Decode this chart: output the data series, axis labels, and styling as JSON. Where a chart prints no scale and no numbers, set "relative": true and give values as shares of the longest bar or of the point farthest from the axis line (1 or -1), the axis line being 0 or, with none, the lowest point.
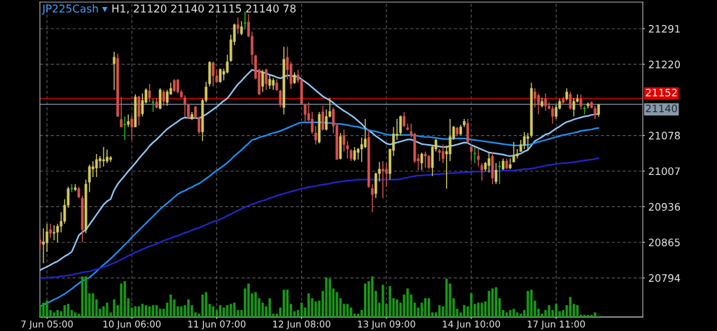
{
  "chart_data": [
    {
      "type": "candlestick",
      "title": "JP225Cash ▾",
      "subtitle": "H1, 21120 21140 21115 21140 78",
      "categories": [
        null,
        null,
        "7 Jun 05:00",
        null,
        null,
        null,
        null,
        null,
        null,
        null,
        null,
        null,
        null,
        null,
        null,
        null,
        null,
        null,
        null,
        null,
        null,
        null,
        null,
        null,
        null,
        null,
        "10 Jun 06:00",
        null,
        null,
        null,
        null,
        null,
        null,
        null,
        null,
        null,
        null,
        null,
        null,
        null,
        null,
        null,
        null,
        null,
        null,
        null,
        null,
        null,
        null,
        null,
        "11 Jun 07:00",
        null,
        null,
        null,
        null,
        null,
        null,
        null,
        null,
        null,
        null,
        null,
        null,
        null,
        null,
        null,
        null,
        null,
        null,
        null,
        null,
        null,
        null,
        null,
        "12 Jun 08:00",
        null,
        null,
        null,
        null,
        null,
        null,
        null,
        null,
        null,
        null,
        null,
        null,
        null,
        null,
        null,
        null,
        null,
        null,
        null,
        null,
        null,
        null,
        null,
        "13 Jun 09:00",
        null,
        null,
        null,
        null,
        null,
        null,
        null,
        null,
        null,
        null,
        null,
        null,
        null,
        null,
        null,
        null,
        null,
        null,
        null,
        null,
        null,
        null,
        null,
        "14 Jun 10:00",
        null,
        null,
        null,
        null,
        null,
        null,
        null,
        null,
        null,
        null,
        null,
        null,
        null,
        null,
        null,
        null,
        null,
        null,
        null,
        null,
        null,
        null,
        null,
        "17 Jun 11:00",
        null,
        null,
        null,
        null,
        null,
        null,
        null,
        null,
        null,
        null,
        null,
        null
      ],
      "ohlc": [
        [
          20870,
          20880,
          20850,
          20862
        ],
        [
          20861,
          20893,
          20823,
          20866
        ],
        [
          20864,
          20902,
          20846,
          20886
        ],
        [
          20890,
          20902,
          20874,
          20883
        ],
        [
          20883,
          20899,
          20869,
          20885
        ],
        [
          20885,
          20902,
          20865,
          20897
        ],
        [
          20897,
          20925,
          20885,
          20907
        ],
        [
          20907,
          20951,
          20902,
          20939
        ],
        [
          20939,
          20976,
          20934,
          20972
        ],
        [
          20972,
          20981,
          20965,
          20972
        ],
        [
          20970,
          20981,
          20967,
          20974
        ],
        [
          20972,
          20976,
          20953,
          20955
        ],
        [
          20953,
          20958,
          20865,
          20890
        ],
        [
          20890,
          20990,
          20883,
          20981
        ],
        [
          20985,
          21020,
          20965,
          21016
        ],
        [
          21011,
          21027,
          20995,
          21016
        ],
        [
          21013,
          21041,
          20995,
          21030
        ],
        [
          21027,
          21037,
          21013,
          21032
        ],
        [
          21027,
          21055,
          21016,
          21030
        ],
        [
          21027,
          21050,
          21023,
          21035
        ],
        [
          21030,
          21037,
          21025,
          21034
        ],
        [
          21221,
          21245,
          21169,
          21234
        ],
        [
          21232,
          21241,
          21116,
          21116
        ],
        [
          21110,
          21155,
          21095,
          21095
        ],
        [
          21100,
          21116,
          21069,
          21100
        ],
        [
          21100,
          21120,
          21095,
          21106
        ],
        [
          21111,
          21118,
          21069,
          21095
        ],
        [
          21095,
          21160,
          21095,
          21155
        ],
        [
          21155,
          21157,
          21098,
          21116
        ],
        [
          21121,
          21162,
          21116,
          21148
        ],
        [
          21144,
          21172,
          21142,
          21169
        ],
        [
          21167,
          21181,
          21144,
          21153
        ],
        [
          21144,
          21151,
          21125,
          21144
        ],
        [
          21145,
          21153,
          21132,
          21134
        ],
        [
          21132,
          21172,
          21130,
          21169
        ],
        [
          21165,
          21169,
          21137,
          21146
        ],
        [
          21144,
          21169,
          21137,
          21165
        ],
        [
          21160,
          21183,
          21160,
          21172
        ],
        [
          21188,
          21190,
          21165,
          21167
        ],
        [
          21189,
          21190,
          21162,
          21165
        ],
        [
          21165,
          21169,
          21153,
          21155
        ],
        [
          21153,
          21158,
          21116,
          21141
        ],
        [
          21139,
          21141,
          21111,
          21113
        ],
        [
          21111,
          21125,
          21109,
          21120
        ],
        [
          21135,
          21137,
          21111,
          21113
        ],
        [
          21113,
          21116,
          21081,
          21085
        ],
        [
          21085,
          21151,
          21067,
          21148
        ],
        [
          21148,
          21185,
          21144,
          21175
        ],
        [
          21181,
          21226,
          21176,
          21224
        ],
        [
          21223,
          21225,
          21176,
          21197
        ],
        [
          21197,
          21209,
          21183,
          21185
        ],
        [
          21185,
          21211,
          21183,
          21210
        ],
        [
          21200,
          21211,
          21188,
          21206
        ],
        [
          21204,
          21239,
          21202,
          21225
        ],
        [
          21227,
          21279,
          21225,
          21269
        ],
        [
          21265,
          21301,
          21258,
          21299
        ],
        [
          21299,
          21313,
          21281,
          21292
        ],
        [
          21281,
          21306,
          21278,
          21295
        ],
        [
          21302,
          21325,
          21290,
          21302
        ],
        [
          21304,
          21320,
          21274,
          21276
        ],
        [
          21276,
          21285,
          21220,
          21239
        ],
        [
          21237,
          21239,
          21190,
          21192
        ],
        [
          21209,
          21211,
          21160,
          21160
        ],
        [
          21176,
          21209,
          21165,
          21204
        ],
        [
          21209,
          21211,
          21169,
          21181
        ],
        [
          21178,
          21199,
          21171,
          21190
        ],
        [
          21178,
          21192,
          21169,
          21188
        ],
        [
          21183,
          21190,
          21167,
          21169
        ],
        [
          21167,
          21169,
          21134,
          21139
        ],
        [
          21134,
          21255,
          21120,
          21230
        ],
        [
          21234,
          21255,
          21190,
          21209
        ],
        [
          21220,
          21225,
          21171,
          21181
        ],
        [
          21183,
          21204,
          21181,
          21199
        ],
        [
          21199,
          21209,
          21183,
          21188
        ],
        [
          21188,
          21190,
          21141,
          21141
        ],
        [
          21139,
          21141,
          21106,
          21120
        ],
        [
          21122,
          21144,
          21106,
          21109
        ],
        [
          21111,
          21125,
          21081,
          21085
        ],
        [
          21083,
          21097,
          21060,
          21069
        ],
        [
          21065,
          21125,
          21062,
          21120
        ],
        [
          21125,
          21137,
          21088,
          21090
        ],
        [
          21090,
          21130,
          21088,
          21116
        ],
        [
          21116,
          21153,
          21114,
          21126
        ],
        [
          21130,
          21134,
          21083,
          21097
        ],
        [
          21098,
          21102,
          21030,
          21030
        ],
        [
          21032,
          21083,
          21030,
          21076
        ],
        [
          21078,
          21090,
          21046,
          21060
        ],
        [
          21058,
          21067,
          21032,
          21051
        ],
        [
          21048,
          21051,
          21027,
          21032
        ],
        [
          21030,
          21055,
          21027,
          21048
        ],
        [
          21044,
          21053,
          21030,
          21051
        ],
        [
          21051,
          21074,
          21025,
          21060
        ],
        [
          21055,
          21111,
          21053,
          21071
        ],
        [
          21074,
          21090,
          20974,
          20976
        ],
        [
          20972,
          20981,
          20925,
          20960
        ],
        [
          20962,
          21004,
          20953,
          21002
        ],
        [
          21002,
          21025,
          20986,
          21011
        ],
        [
          21011,
          21027,
          20953,
          21007
        ],
        [
          21011,
          21023,
          20976,
          21002
        ],
        [
          21002,
          21051,
          20990,
          21051
        ],
        [
          21048,
          21095,
          21037,
          21081
        ],
        [
          21078,
          21111,
          21069,
          21081
        ],
        [
          21083,
          21118,
          21078,
          21116
        ],
        [
          21116,
          21125,
          21095,
          21097
        ],
        [
          21093,
          21102,
          21088,
          21090
        ],
        [
          21086,
          21102,
          21074,
          21079
        ],
        [
          21081,
          21083,
          21023,
          21027
        ],
        [
          21032,
          21041,
          21009,
          21027
        ],
        [
          21023,
          21044,
          21009,
          21041
        ],
        [
          21041,
          21046,
          21014,
          21037
        ],
        [
          21037,
          21039,
          21011,
          21014
        ],
        [
          21014,
          21058,
          20997,
          21055
        ],
        [
          21051,
          21071,
          21046,
          21069
        ],
        [
          21048,
          21051,
          21027,
          21044
        ],
        [
          21046,
          21060,
          21023,
          21032
        ],
        [
          21041,
          21058,
          20972,
          21046
        ],
        [
          21041,
          21111,
          21027,
          21076
        ],
        [
          21072,
          21097,
          21069,
          21095
        ],
        [
          21093,
          21095,
          21076,
          21081
        ],
        [
          21081,
          21099,
          21078,
          21095
        ],
        [
          21099,
          21111,
          21095,
          21106
        ],
        [
          21102,
          21111,
          21062,
          21065
        ],
        [
          21055,
          21060,
          21027,
          21046
        ],
        [
          21042,
          21055,
          21023,
          21042
        ],
        [
          21037,
          21051,
          21016,
          21030
        ],
        [
          21018,
          21023,
          20988,
          21009
        ],
        [
          21011,
          21025,
          21007,
          21023
        ],
        [
          21018,
          21044,
          21004,
          21032
        ],
        [
          21037,
          21044,
          20981,
          20993
        ],
        [
          20986,
          21023,
          20981,
          21009
        ],
        [
          21016,
          21027,
          20981,
          21016
        ],
        [
          21011,
          21032,
          21009,
          21027
        ],
        [
          21027,
          21032,
          21011,
          21013
        ],
        [
          21013,
          21032,
          21011,
          21020
        ],
        [
          21025,
          21065,
          21025,
          21037
        ],
        [
          21037,
          21051,
          21032,
          21041
        ],
        [
          21046,
          21069,
          21046,
          21060
        ],
        [
          21058,
          21085,
          21051,
          21076
        ],
        [
          21072,
          21083,
          21048,
          21076
        ],
        [
          21078,
          21183,
          21074,
          21172
        ],
        [
          21165,
          21172,
          21134,
          21153
        ],
        [
          21158,
          21162,
          21120,
          21139
        ],
        [
          21137,
          21153,
          21134,
          21146
        ],
        [
          21151,
          21162,
          21127,
          21137
        ],
        [
          21137,
          21144,
          21130,
          21132
        ],
        [
          21132,
          21137,
          21102,
          21116
        ],
        [
          21116,
          21139,
          21111,
          21134
        ],
        [
          21132,
          21151,
          21130,
          21146
        ],
        [
          21151,
          21155,
          21141,
          21144
        ],
        [
          21151,
          21172,
          21148,
          21165
        ],
        [
          21160,
          21165,
          21130,
          21132
        ],
        [
          21130,
          21153,
          21116,
          21146
        ],
        [
          21146,
          21160,
          21144,
          21151
        ],
        [
          21151,
          21160,
          21130,
          21137
        ],
        [
          21132,
          21137,
          21120,
          21132
        ],
        [
          21137,
          21144,
          21132,
          21141
        ],
        [
          21144,
          21146,
          21132,
          21134
        ],
        [
          21132,
          21137,
          21111,
          21120
        ],
        [
          21120,
          21140,
          21115,
          21140
        ]
      ],
      "colors": [
        "#d9534f",
        "#d4cc5e",
        "#d4cc5e",
        "#d9534f",
        "#d4cc5e",
        "#d4cc5e",
        "#d4cc5e",
        "#d4cc5e",
        "#d4cc5e",
        "#22c022",
        "#d4cc5e",
        "#d9534f",
        "#d9534f",
        "#d4cc5e",
        "#d4cc5e",
        "#d4cc5e",
        "#d4cc5e",
        "#d4cc5e",
        "#d4cc5e",
        "#d4cc5e",
        "#d4cc5e",
        "#d4cc5e",
        "#d9534f",
        "#d9534f",
        "#22c022",
        "#d4cc5e",
        "#d9534f",
        "#d4cc5e",
        "#d9534f",
        "#d4cc5e",
        "#d4cc5e",
        "#d9534f",
        "#22c022",
        "#d9534f",
        "#d4cc5e",
        "#d9534f",
        "#d4cc5e",
        "#d4cc5e",
        "#d9534f",
        "#d9534f",
        "#d9534f",
        "#d9534f",
        "#d9534f",
        "#d4cc5e",
        "#d9534f",
        "#d9534f",
        "#d4cc5e",
        "#d4cc5e",
        "#d4cc5e",
        "#d9534f",
        "#d9534f",
        "#d4cc5e",
        "#d4cc5e",
        "#d4cc5e",
        "#d4cc5e",
        "#d4cc5e",
        "#d9534f",
        "#d4cc5e",
        "#22c022",
        "#d9534f",
        "#d9534f",
        "#d9534f",
        "#d9534f",
        "#d4cc5e",
        "#d9534f",
        "#d4cc5e",
        "#d4cc5e",
        "#d9534f",
        "#d9534f",
        "#d4cc5e",
        "#d9534f",
        "#d9534f",
        "#d4cc5e",
        "#d9534f",
        "#d9534f",
        "#d9534f",
        "#d9534f",
        "#d9534f",
        "#d9534f",
        "#d4cc5e",
        "#d9534f",
        "#d4cc5e",
        "#d4cc5e",
        "#d9534f",
        "#d9534f",
        "#d4cc5e",
        "#d9534f",
        "#d9534f",
        "#d9534f",
        "#d4cc5e",
        "#d4cc5e",
        "#d4cc5e",
        "#d4cc5e",
        "#d9534f",
        "#d9534f",
        "#d4cc5e",
        "#d4cc5e",
        "#d9534f",
        "#d9534f",
        "#d4cc5e",
        "#d4cc5e",
        "#d4cc5e",
        "#d4cc5e",
        "#d9534f",
        "#d9534f",
        "#d9534f",
        "#d9534f",
        "#d9534f",
        "#d4cc5e",
        "#d9534f",
        "#d9534f",
        "#d4cc5e",
        "#d4cc5e",
        "#d9534f",
        "#d9534f",
        "#d4cc5e",
        "#d4cc5e",
        "#d4cc5e",
        "#d9534f",
        "#d4cc5e",
        "#d4cc5e",
        "#d9534f",
        "#d9534f",
        "#22c022",
        "#d9534f",
        "#d9534f",
        "#d4cc5e",
        "#d4cc5e",
        "#d9534f",
        "#d4cc5e",
        "#22c022",
        "#d4cc5e",
        "#d9534f",
        "#d4cc5e",
        "#d4cc5e",
        "#d4cc5e",
        "#d4cc5e",
        "#d4cc5e",
        "#d4cc5e",
        "#d4cc5e",
        "#d9534f",
        "#d9534f",
        "#d4cc5e",
        "#d9534f",
        "#d9534f",
        "#d9534f",
        "#d4cc5e",
        "#d4cc5e",
        "#d9534f",
        "#d4cc5e",
        "#d9534f",
        "#d4cc5e",
        "#d4cc5e",
        "#d9534f",
        "#22c022",
        "#d4cc5e",
        "#d9534f",
        "#d9534f",
        "#d4cc5e"
      ],
      "series": [
        {
          "type": "line",
          "color": "#8ec8f8",
          "values": [
            20809,
            20813,
            20816,
            20820,
            20824,
            20827,
            20832,
            20837,
            20841,
            20846,
            20862,
            20879,
            20885,
            20890,
            20900,
            20910,
            20920,
            20930,
            20940,
            20947,
            20951,
            20969,
            20981,
            20990,
            20998,
            21007,
            21015,
            21023,
            21032,
            21040,
            21048,
            21057,
            21064,
            21070,
            21077,
            21084,
            21091,
            21096,
            21101,
            21106,
            21111,
            21114,
            21113,
            21113,
            21113,
            21112,
            21116,
            21120,
            21125,
            21130,
            21135,
            21141,
            21147,
            21152,
            21161,
            21171,
            21180,
            21187,
            21195,
            21202,
            21209,
            21207,
            21206,
            21204,
            21202,
            21199,
            21197,
            21194,
            21192,
            21195,
            21198,
            21197,
            21196,
            21195,
            21190,
            21185,
            21180,
            21174,
            21168,
            21162,
            21156,
            21152,
            21148,
            21143,
            21137,
            21132,
            21127,
            21123,
            21118,
            21113,
            21107,
            21101,
            21093,
            21088,
            21083,
            21077,
            21072,
            21067,
            21062,
            21060,
            21062,
            21064,
            21066,
            21068,
            21070,
            21070,
            21067,
            21064,
            21061,
            21060,
            21059,
            21058,
            21057,
            21056,
            21055,
            21055,
            21057,
            21058,
            21060,
            21062,
            21064,
            21063,
            21059,
            21056,
            21053,
            21050,
            21047,
            21044,
            21043,
            21042,
            21041,
            21040,
            21038,
            21037,
            21038,
            21040,
            21042,
            21046,
            21049,
            21058,
            21067,
            21071,
            21075,
            21080,
            21082,
            21087,
            21092,
            21096,
            21101,
            21105,
            21107,
            21110,
            21112,
            21114,
            21116,
            21117,
            21119,
            21120,
            21121
          ]
        },
        {
          "type": "line",
          "color": "#1e8ef0",
          "values": [
            20737,
            20740,
            20744,
            20747,
            20751,
            20754,
            20758,
            20762,
            20767,
            20772,
            20778,
            20783,
            20788,
            20791,
            20795,
            20801,
            20807,
            20814,
            20820,
            20826,
            20832,
            20839,
            20846,
            20853,
            20860,
            20867,
            20875,
            20882,
            20889,
            20896,
            20903,
            20910,
            20917,
            20924,
            20931,
            20937,
            20943,
            20949,
            20955,
            20961,
            20965,
            20968,
            20972,
            20975,
            20979,
            20982,
            20987,
            20992,
            20997,
            21003,
            21008,
            21013,
            21018,
            21024,
            21030,
            21037,
            21043,
            21049,
            21056,
            21062,
            21069,
            21071,
            21074,
            21076,
            21078,
            21081,
            21083,
            21085,
            21087,
            21090,
            21093,
            21096,
            21099,
            21102,
            21104,
            21104,
            21104,
            21104,
            21104,
            21104,
            21104,
            21103,
            21103,
            21102,
            21101,
            21101,
            21100,
            21099,
            21097,
            21096,
            21095,
            21093,
            21091,
            21089,
            21087,
            21086,
            21084,
            21082,
            21080,
            21079,
            21079,
            21079,
            21079,
            21079,
            21079,
            21079,
            21078,
            21077,
            21076,
            21075,
            21075,
            21074,
            21073,
            21072,
            21071,
            21071,
            21071,
            21072,
            21072,
            21072,
            21072,
            21071,
            21070,
            21069,
            21068,
            21067,
            21066,
            21065,
            21064,
            21063,
            21062,
            21061,
            21060,
            21059,
            21058,
            21058,
            21058,
            21059,
            21059,
            21061,
            21063,
            21065,
            21067,
            21069,
            21071,
            21073,
            21075,
            21077,
            21079,
            21080,
            21082,
            21083,
            21085,
            21087,
            21088,
            21089,
            21090,
            21092,
            21093
          ]
        },
        {
          "type": "line",
          "color": "#2424c8",
          "values": [
            20793,
            20794,
            20794,
            20795,
            20795,
            20796,
            20797,
            20798,
            20799,
            20800,
            20802,
            20803,
            20805,
            20806,
            20807,
            20809,
            20811,
            20813,
            20816,
            20818,
            20821,
            20824,
            20827,
            20831,
            20834,
            20838,
            20841,
            20845,
            20848,
            20851,
            20854,
            20857,
            20859,
            20862,
            20865,
            20868,
            20871,
            20873,
            20876,
            20878,
            20881,
            20884,
            20886,
            20889,
            20892,
            20894,
            20897,
            20900,
            20903,
            20906,
            20908,
            20911,
            20914,
            20918,
            20921,
            20925,
            20928,
            20932,
            20935,
            20938,
            20941,
            20943,
            20946,
            20948,
            20950,
            20953,
            20955,
            20958,
            20960,
            20962,
            20964,
            20966,
            20968,
            20970,
            20972,
            20973,
            20975,
            20976,
            20977,
            20979,
            20980,
            20981,
            20982,
            20984,
            20985,
            20986,
            20987,
            20988,
            20988,
            20989,
            20990,
            20990,
            20990,
            20990,
            20990,
            20990,
            20990,
            20990,
            20990,
            20990,
            20990,
            20990,
            20991,
            20993,
            20994,
            20996,
            20997,
            20998,
            20998,
            20999,
            20999,
            21000,
            21001,
            21001,
            21002,
            21002,
            21003,
            21003,
            21004,
            21004,
            21005,
            21005,
            21005,
            21006,
            21006,
            21006,
            21006,
            21007,
            21007,
            21007,
            21007,
            21008,
            21008,
            21008,
            21008,
            21009,
            21010,
            21011,
            21011,
            21012,
            21013,
            21015,
            21016,
            21018,
            21019,
            21020,
            21021,
            21022,
            21023,
            21023,
            21024,
            21025,
            21026,
            21027,
            21028,
            21029,
            21030,
            21031,
            21033
          ]
        }
      ],
      "ylim": [
        20716,
        21344
      ],
      "yticks": [
        20794,
        20865,
        20936,
        21007,
        21078,
        21220,
        21291
      ],
      "grid": true,
      "ref_lines": [
        {
          "axis": "y",
          "value": 21152,
          "label": "21152",
          "color": "#e00000"
        },
        {
          "axis": "y",
          "value": 21140,
          "label": "21140",
          "color": "#8898a8"
        }
      ]
    },
    {
      "type": "bar",
      "relative": true,
      "color": "#1a9a1a",
      "categories": [
        null,
        null,
        null,
        null,
        null,
        null,
        null,
        null,
        null,
        null,
        null,
        null,
        null,
        null,
        null,
        null,
        null,
        null,
        null,
        null,
        null,
        null,
        null,
        null,
        null,
        null,
        null,
        null,
        null,
        null,
        null,
        null,
        null,
        null,
        null,
        null,
        null,
        null,
        null,
        null,
        null,
        null,
        null,
        null,
        null,
        null,
        null,
        null,
        null,
        null,
        null,
        null,
        null,
        null,
        null,
        null,
        null,
        null,
        null,
        null,
        null,
        null,
        null,
        null,
        null,
        null,
        null,
        null,
        null,
        null,
        null,
        null,
        null,
        null,
        null,
        null,
        null,
        null,
        null,
        null,
        null,
        null,
        null,
        null,
        null,
        null,
        null,
        null,
        null,
        null,
        null,
        null,
        null,
        null,
        null,
        null,
        null,
        null,
        null,
        null,
        null,
        null,
        null,
        null,
        null,
        null,
        null,
        null,
        null,
        null,
        null,
        null,
        null,
        null,
        null,
        null,
        null,
        null,
        null,
        null,
        null,
        null,
        null,
        null,
        null,
        null,
        null,
        null,
        null,
        null,
        null,
        null,
        null,
        null,
        null,
        null,
        null,
        null,
        null,
        null,
        null,
        null,
        null,
        null,
        null,
        null,
        null,
        null,
        null,
        null,
        null,
        null,
        null,
        null,
        null,
        null,
        null,
        null,
        null
      ],
      "values": [
        0.29,
        0.35,
        0.4,
        0.17,
        0.11,
        0.17,
        0.14,
        0.29,
        0.32,
        0.17,
        0.11,
        0.08,
        1,
        1,
        0.58,
        0.58,
        0.43,
        0.2,
        0.26,
        0.35,
        0.11,
        0.43,
        0.29,
        0.82,
        0.88,
        0.46,
        0.23,
        0.26,
        0.26,
        0.32,
        0.29,
        0.26,
        0.29,
        0.29,
        0.2,
        0.2,
        0.35,
        0.55,
        0.43,
        0.26,
        0.26,
        0.29,
        0.43,
        0.29,
        0.11,
        0.08,
        0.55,
        0.61,
        0.32,
        0.26,
        0.17,
        0.29,
        0.23,
        0.29,
        0.32,
        0.35,
        0.17,
        0.17,
        0.7,
        0.82,
        0.58,
        0.61,
        0.46,
        0.35,
        0.26,
        0.46,
        0.08,
        0.08,
        0.23,
        0.67,
        0.67,
        0.32,
        0.14,
        0.17,
        0.35,
        0.23,
        0.58,
        0.46,
        0.38,
        0.4,
        0.64,
        0.97,
        0.94,
        0.7,
        0.61,
        0.46,
        0.32,
        0.32,
        0.23,
        0.08,
        0.08,
        0.17,
        0.82,
        0.88,
        1,
        0.64,
        0.35,
        0.79,
        0.32,
        0.76,
        0.46,
        0.43,
        0.35,
        0.55,
        0.7,
        0.55,
        0.35,
        0.23,
        0.35,
        0.46,
        0.46,
        0.11,
        0.11,
        0.29,
        0.26,
        0.94,
        0.82,
        0.46,
        0.2,
        0.11,
        0.29,
        0.26,
        0.58,
        0.32,
        0.35,
        0.35,
        0.38,
        0.64,
        0.7,
        0.73,
        0.46,
        0.17,
        0.11,
        0.17,
        0.2,
        0.11,
        0.08,
        0.17,
        0.64,
        0.67,
        0.4,
        0.2,
        0.08,
        0.17,
        0.29,
        0.17,
        0.32,
        0.14,
        0.17,
        0.29,
        0.49,
        0.32,
        0.29,
        0.05,
        0.05,
        0.05,
        0.05,
        0.11,
        0.02
      ]
    }
  ]
}
